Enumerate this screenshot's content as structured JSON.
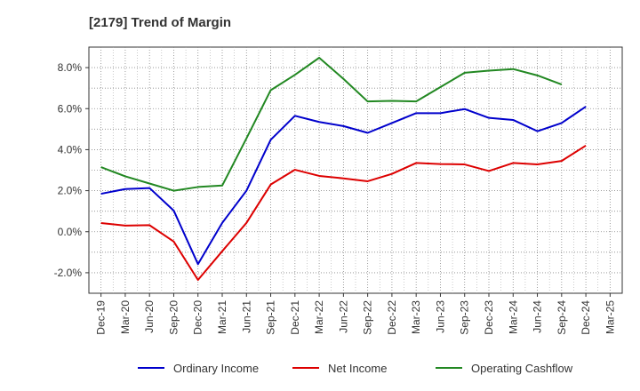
{
  "chart_data": {
    "type": "line",
    "title": "[2179]  Trend of Margin",
    "xlabel": "",
    "ylabel": "",
    "categories": [
      "Dec-19",
      "Mar-20",
      "Jun-20",
      "Sep-20",
      "Dec-20",
      "Mar-21",
      "Jun-21",
      "Sep-21",
      "Dec-21",
      "Mar-22",
      "Jun-22",
      "Sep-22",
      "Dec-22",
      "Mar-23",
      "Jun-23",
      "Sep-23",
      "Dec-23",
      "Mar-24",
      "Jun-24",
      "Sep-24",
      "Dec-24",
      "Mar-25"
    ],
    "ylim": [
      -3.0,
      9.0
    ],
    "yticks": [
      -2.0,
      0.0,
      2.0,
      4.0,
      6.0,
      8.0
    ],
    "ytick_labels": [
      "-2.0%",
      "0.0%",
      "2.0%",
      "4.0%",
      "6.0%",
      "8.0%"
    ],
    "grid": true,
    "legend_position": "bottom",
    "series": [
      {
        "name": "Ordinary Income",
        "color": "#0000cc",
        "values": [
          1.85,
          2.08,
          2.13,
          1.03,
          -1.58,
          0.43,
          2.0,
          4.48,
          5.65,
          5.35,
          5.15,
          4.82,
          5.3,
          5.78,
          5.78,
          5.98,
          5.55,
          5.45,
          4.9,
          5.3,
          6.1,
          null
        ]
      },
      {
        "name": "Net Income",
        "color": "#dd0000",
        "values": [
          0.42,
          0.3,
          0.32,
          -0.48,
          -2.35,
          -0.95,
          0.43,
          2.3,
          3.02,
          2.72,
          2.6,
          2.46,
          2.82,
          3.35,
          3.3,
          3.28,
          2.96,
          3.35,
          3.28,
          3.45,
          4.2,
          null
        ]
      },
      {
        "name": "Operating Cashflow",
        "color": "#228822",
        "values": [
          3.15,
          2.7,
          2.35,
          2.0,
          2.18,
          2.25,
          4.55,
          6.9,
          7.65,
          8.48,
          7.45,
          6.35,
          6.38,
          6.35,
          7.05,
          7.75,
          7.85,
          7.93,
          7.62,
          7.18,
          null,
          null
        ]
      }
    ]
  }
}
